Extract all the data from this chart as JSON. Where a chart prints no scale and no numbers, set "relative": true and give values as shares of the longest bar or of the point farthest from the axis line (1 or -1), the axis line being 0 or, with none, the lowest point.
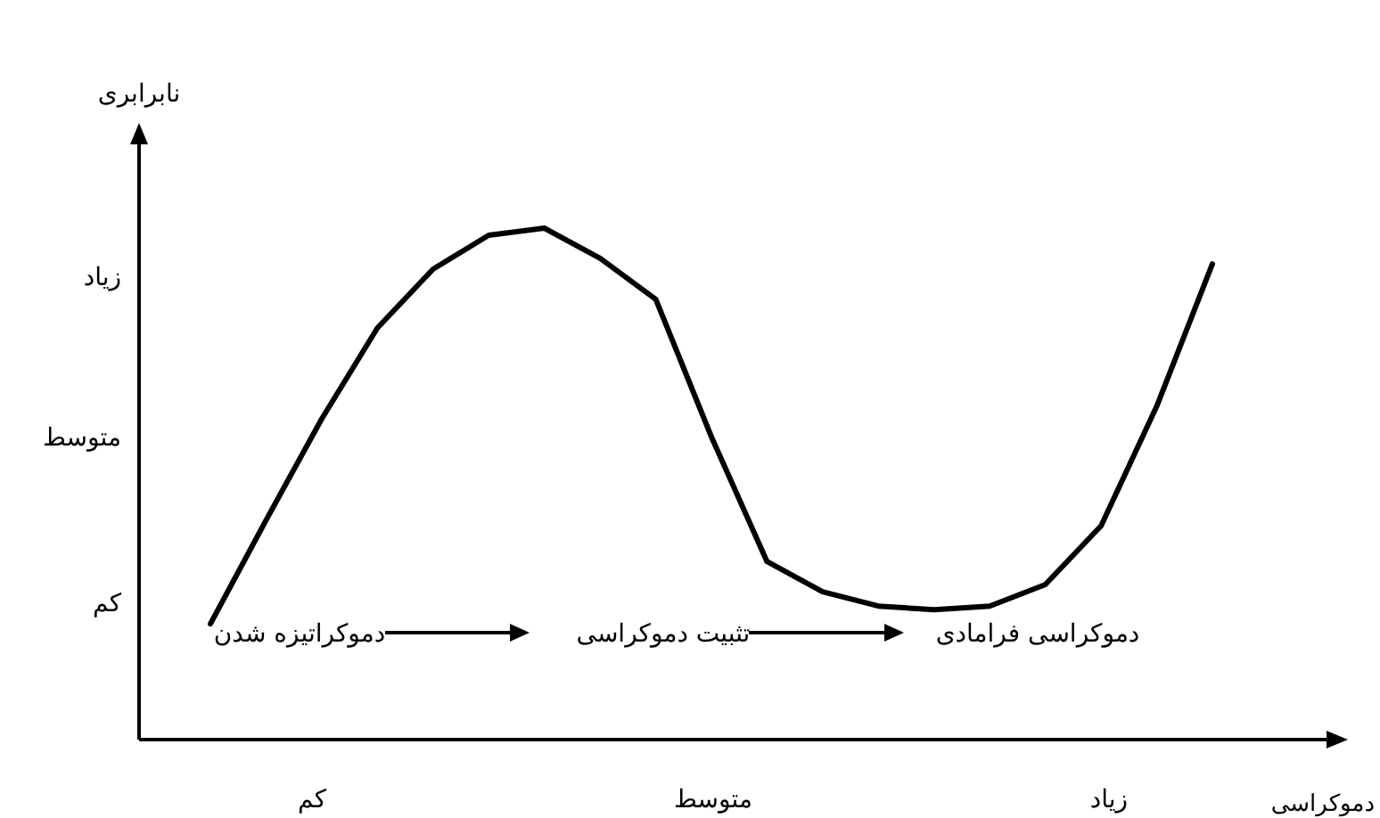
{
  "chart_data": {
    "type": "line",
    "relative": true,
    "ylabel": "نابرابری",
    "xlabel": "دموکراسی",
    "categories": [
      null,
      null,
      null,
      null,
      null,
      null,
      null,
      null,
      null,
      null,
      null,
      null,
      null,
      null,
      null,
      null,
      null,
      null,
      null
    ],
    "series": [
      {
        "color": "#000000",
        "values": [
          0.226,
          0.429,
          0.627,
          0.805,
          0.92,
          0.986,
          1.0,
          0.941,
          0.861,
          0.592,
          0.348,
          0.289,
          0.261,
          0.254,
          0.261,
          0.303,
          0.418,
          0.652,
          0.93
        ]
      }
    ],
    "annotations": [
      "دموکراتیزه شدن",
      "تثبیت دموکراسی",
      "دموکراسی فرامادی",
      "کم",
      "متوسط",
      "زیاد",
      "کم",
      "متوسط",
      "زیاد"
    ],
    "grid": false,
    "marker": "none",
    "line_style": "solid"
  }
}
